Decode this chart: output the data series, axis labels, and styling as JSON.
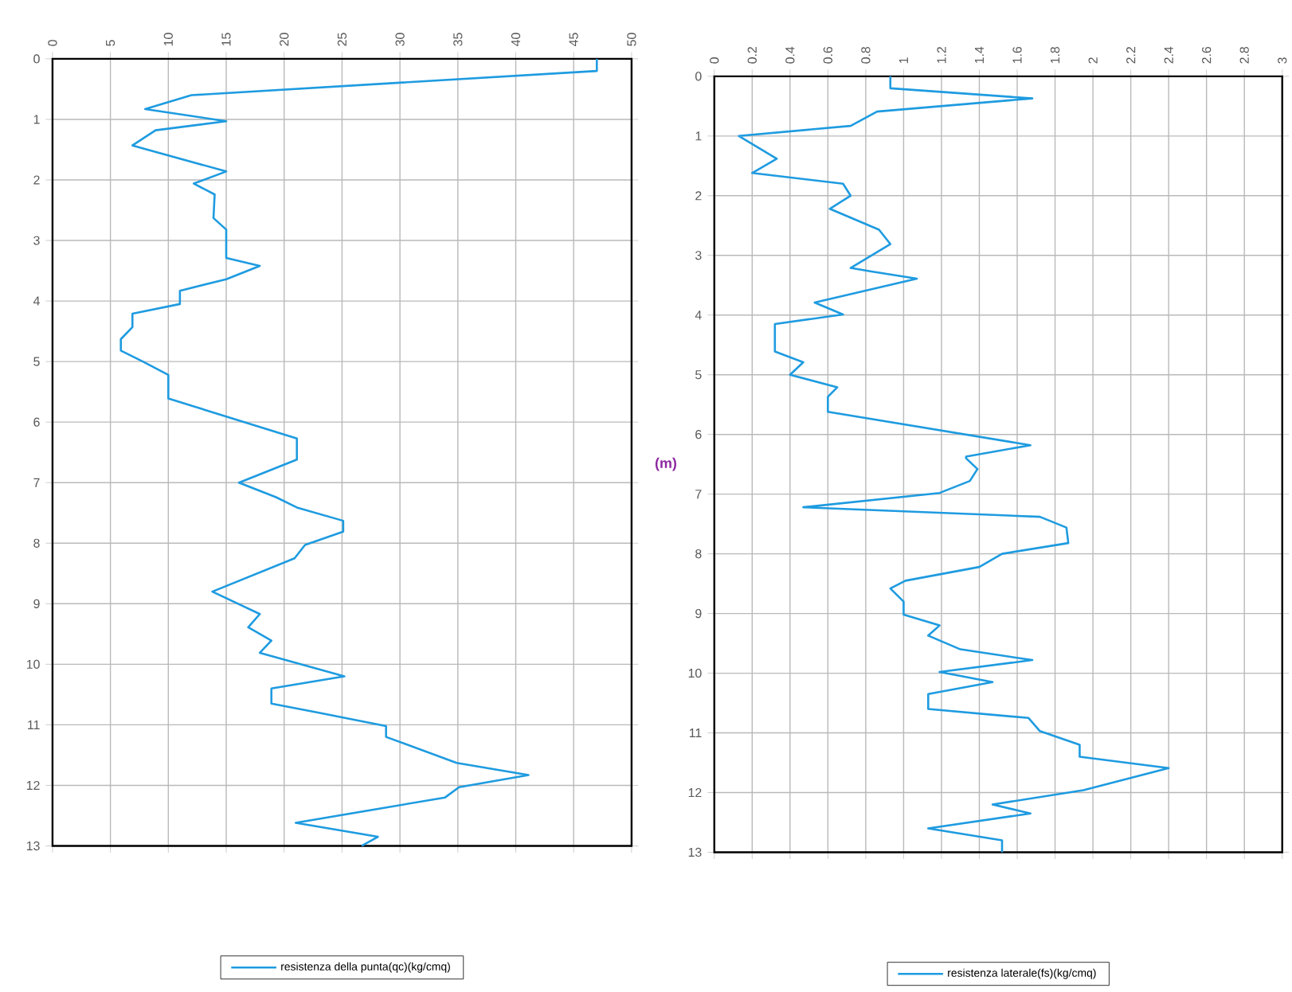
{
  "chart_data": [
    {
      "type": "line",
      "xlim": [
        0,
        50
      ],
      "ylim": [
        13,
        0
      ],
      "xticks": [
        0,
        5,
        10,
        15,
        20,
        25,
        30,
        35,
        40,
        45,
        50
      ],
      "yticks": [
        0,
        1,
        2,
        3,
        4,
        5,
        6,
        7,
        8,
        9,
        10,
        11,
        12,
        13
      ],
      "grid": true,
      "legend": "bottom",
      "series": [
        {
          "name": "resistenza della punta(qc)(kg/cmq)",
          "color": "#1e9be0",
          "x": [
            47,
            47,
            12,
            8,
            15,
            8.9,
            6.9,
            15,
            12.2,
            14,
            13.9,
            15,
            15,
            17.9,
            15,
            11,
            11,
            6.9,
            6.9,
            5.9,
            5.9,
            7.8,
            10,
            10,
            21.1,
            21.1,
            16.1,
            19.3,
            21.1,
            25.1,
            25.1,
            21.8,
            20.9,
            13.8,
            17.9,
            16.9,
            18.9,
            17.9,
            25.2,
            18.9,
            18.9,
            23,
            28.8,
            28.8,
            34.9,
            41.1,
            35.1,
            33.9,
            21,
            28.1,
            26.7
          ],
          "values": [
            0,
            0.2,
            0.6,
            0.83,
            1.03,
            1.18,
            1.43,
            1.86,
            2.06,
            2.24,
            2.63,
            2.82,
            3.29,
            3.42,
            3.64,
            3.83,
            4.05,
            4.21,
            4.43,
            4.63,
            4.82,
            5,
            5.22,
            5.61,
            6.27,
            6.62,
            7,
            7.24,
            7.41,
            7.63,
            7.81,
            8.03,
            8.25,
            8.8,
            9.17,
            9.39,
            9.61,
            9.81,
            10.2,
            10.4,
            10.65,
            10.8,
            11.02,
            11.2,
            11.63,
            11.83,
            12.03,
            12.2,
            12.62,
            12.85,
            13
          ]
        }
      ]
    },
    {
      "type": "line",
      "xlim": [
        0,
        3
      ],
      "ylim": [
        13,
        0
      ],
      "ylabel": "(m)",
      "xticks": [
        0,
        0.2,
        0.4,
        0.6,
        0.8,
        1,
        1.2,
        1.4,
        1.6,
        1.8,
        2,
        2.2,
        2.4,
        2.6,
        2.8,
        3
      ],
      "yticks": [
        0,
        1,
        2,
        3,
        4,
        5,
        6,
        7,
        8,
        9,
        10,
        11,
        12,
        13
      ],
      "grid": true,
      "legend": "bottom",
      "series": [
        {
          "name": "resistenza laterale(fs)(kg/cmq)",
          "color": "#1e9be0",
          "x": [
            0.93,
            0.93,
            1.68,
            0.86,
            0.72,
            0.13,
            0.33,
            0.2,
            0.68,
            0.72,
            0.61,
            0.87,
            0.93,
            0.72,
            0.83,
            1.07,
            0.53,
            0.68,
            0.32,
            0.32,
            0.47,
            0.4,
            0.65,
            0.6,
            0.6,
            1.67,
            1.33,
            1.33,
            1.39,
            1.35,
            1.19,
            0.47,
            1.72,
            1.86,
            1.87,
            1.52,
            1.4,
            1.01,
            0.93,
            1,
            1,
            1.19,
            1.13,
            1.3,
            1.68,
            1.19,
            1.47,
            1.13,
            1.13,
            1.66,
            1.72,
            1.93,
            1.93,
            2.4,
            1.95,
            1.47,
            1.67,
            1.13,
            1.52,
            1.52
          ],
          "values": [
            0,
            0.2,
            0.37,
            0.59,
            0.83,
            1,
            1.38,
            1.62,
            1.8,
            2,
            2.22,
            2.57,
            2.81,
            3.21,
            3.27,
            3.39,
            3.79,
            3.99,
            4.15,
            4.61,
            4.79,
            5,
            5.21,
            5.37,
            5.62,
            6.18,
            6.37,
            6.4,
            6.58,
            6.78,
            6.98,
            7.22,
            7.38,
            7.56,
            7.82,
            8,
            8.22,
            8.45,
            8.58,
            8.8,
            9.02,
            9.2,
            9.37,
            9.6,
            9.78,
            9.98,
            10.15,
            10.35,
            10.6,
            10.75,
            10.97,
            11.2,
            11.4,
            11.59,
            11.96,
            12.2,
            12.35,
            12.6,
            12.8,
            13
          ]
        }
      ]
    }
  ]
}
